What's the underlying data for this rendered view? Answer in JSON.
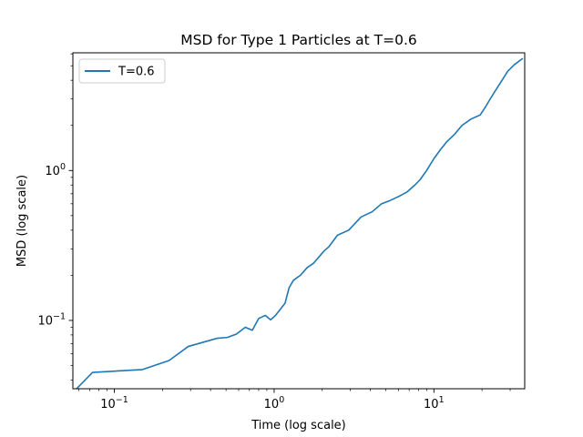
{
  "chart_data": {
    "type": "line",
    "title": "MSD for Type 1 Particles at T=0.6",
    "xlabel": "Time (log scale)",
    "ylabel": "MSD (log scale)",
    "xscale": "log",
    "yscale": "log",
    "xlim": [
      0.055,
      37
    ],
    "ylim": [
      0.035,
      6.1
    ],
    "xticks": [
      {
        "value": 0.1,
        "base": "10",
        "exp": "−1"
      },
      {
        "value": 1,
        "base": "10",
        "exp": "0"
      },
      {
        "value": 10,
        "base": "10",
        "exp": "1"
      }
    ],
    "yticks": [
      {
        "value": 0.1,
        "base": "10",
        "exp": "−1"
      },
      {
        "value": 1,
        "base": "10",
        "exp": "0"
      }
    ],
    "legend": {
      "position": "top-left",
      "label": "T=0.6"
    },
    "series": [
      {
        "name": "T=0.6",
        "color": "#1f77b4",
        "x": [
          0.058,
          0.073,
          0.15,
          0.22,
          0.29,
          0.44,
          0.51,
          0.58,
          0.66,
          0.73,
          0.8,
          0.88,
          0.95,
          1.02,
          1.17,
          1.24,
          1.32,
          1.46,
          1.61,
          1.76,
          2.05,
          2.2,
          2.49,
          2.93,
          3.5,
          4.1,
          4.7,
          5.3,
          6.0,
          6.8,
          7.6,
          8.2,
          9.0,
          10.0,
          11.0,
          12.0,
          13.5,
          15.0,
          17.0,
          19.5,
          21.0,
          22.5,
          24.0,
          26.5,
          29.0,
          32.0,
          36.0
        ],
        "y": [
          0.035,
          0.045,
          0.047,
          0.054,
          0.067,
          0.076,
          0.077,
          0.081,
          0.09,
          0.086,
          0.103,
          0.108,
          0.101,
          0.108,
          0.13,
          0.165,
          0.185,
          0.2,
          0.225,
          0.24,
          0.29,
          0.31,
          0.37,
          0.4,
          0.49,
          0.53,
          0.6,
          0.63,
          0.67,
          0.72,
          0.8,
          0.87,
          1.0,
          1.2,
          1.38,
          1.55,
          1.75,
          2.0,
          2.2,
          2.35,
          2.65,
          3.0,
          3.35,
          3.95,
          4.6,
          5.1,
          5.6
        ]
      }
    ]
  }
}
